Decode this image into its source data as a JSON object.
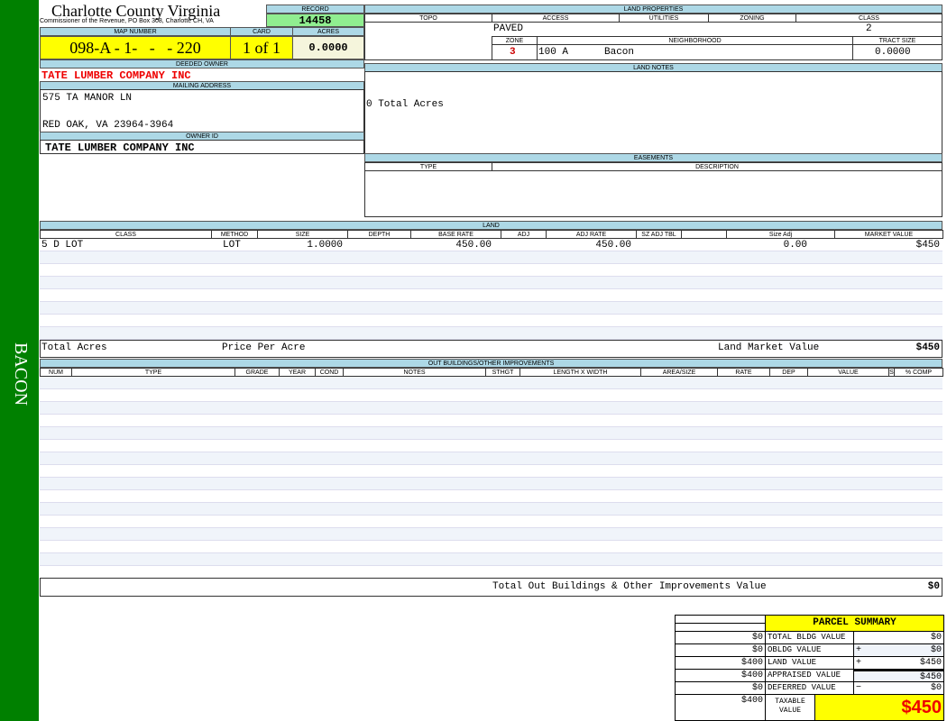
{
  "sidebar": {
    "label": "BACON",
    "color": "#008000"
  },
  "header": {
    "title": "Charlotte County Virginia",
    "subtitle": "Commissioner of the Revenue, PO Box 308, Charlotte CH, VA"
  },
  "record": {
    "label": "RECORD",
    "value": "14458"
  },
  "map": {
    "map_label": "MAP NUMBER",
    "map_value": "098-A - 1-   -   - 220",
    "card_label": "CARD",
    "card_value": "1 of 1",
    "acres_label": "ACRES",
    "acres_value": "0.0000"
  },
  "owner": {
    "deeded_label": "DEEDED OWNER",
    "deeded_value": "TATE LUMBER COMPANY INC",
    "mailing_label": "MAILING ADDRESS",
    "address1": "575 TA MANOR LN",
    "address2": "RED OAK, VA 23964-3964",
    "id_label": "OWNER ID",
    "id_value": "TATE LUMBER COMPANY INC"
  },
  "land_properties": {
    "title": "LAND PROPERTIES",
    "columns": [
      "TOPO",
      "ACCESS",
      "UTILITIES",
      "ZONING",
      "CLASS"
    ],
    "access": "PAVED",
    "class": "2",
    "zone_label": "ZONE",
    "neighborhood_label": "NEIGHBORHOOD",
    "tract_label": "TRACT SIZE",
    "zone": "3",
    "neighborhood_code": "100 A",
    "neighborhood": "Bacon",
    "tract_size": "0.0000"
  },
  "land_notes": {
    "title": "LAND NOTES",
    "text": "0 Total Acres"
  },
  "easements": {
    "title": "EASEMENTS",
    "columns": [
      "TYPE",
      "DESCRIPTION"
    ]
  },
  "land": {
    "title": "LAND",
    "columns": [
      "CLASS",
      "METHOD",
      "SIZE",
      "DEPTH",
      "BASE RATE",
      "ADJ",
      "ADJ RATE",
      "SZ ADJ TBL",
      "",
      "Size Adj",
      "MARKET VALUE"
    ],
    "rows": [
      {
        "class": "5 D LOT",
        "method": "LOT",
        "size": "1.0000",
        "base_rate": "450.00",
        "adj_rate": "450.00",
        "size_adj": "0.00",
        "market_value": "$450"
      }
    ],
    "total_acres_label": "Total Acres",
    "price_per_acre_label": "Price Per Acre",
    "market_label": "Land Market Value",
    "market_total": "$450"
  },
  "outbuildings": {
    "title": "OUT BUILDINGS/OTHER IMPROVEMENTS",
    "columns": [
      "NUM",
      "TYPE",
      "GRADE",
      "YEAR",
      "COND",
      "NOTES",
      "STHGT",
      "LENGTH X WIDTH",
      "AREA/SIZE",
      "RATE",
      "DEP",
      "VALUE",
      "S",
      "% COMP"
    ],
    "total_label": "Total Out Buildings & Other Improvements Value",
    "total_value": "$0"
  },
  "summary": {
    "title": "PARCEL SUMMARY",
    "rows": [
      {
        "prior": "$0",
        "label": "TOTAL BLDG VALUE",
        "op": "",
        "value": "$0"
      },
      {
        "prior": "$0",
        "label": "OBLDG VALUE",
        "op": "+",
        "value": "$0"
      },
      {
        "prior": "$400",
        "label": "LAND VALUE",
        "op": "+",
        "value": "$450"
      },
      {
        "prior": "$400",
        "label": "APPRAISED VALUE",
        "op": "",
        "value": "$450"
      },
      {
        "prior": "$0",
        "label": "DEFERRED VALUE",
        "op": "−",
        "value": "$0"
      }
    ],
    "taxable_prior": "$400",
    "taxable_label": "TAXABLE VALUE",
    "taxable_value": "$450"
  }
}
